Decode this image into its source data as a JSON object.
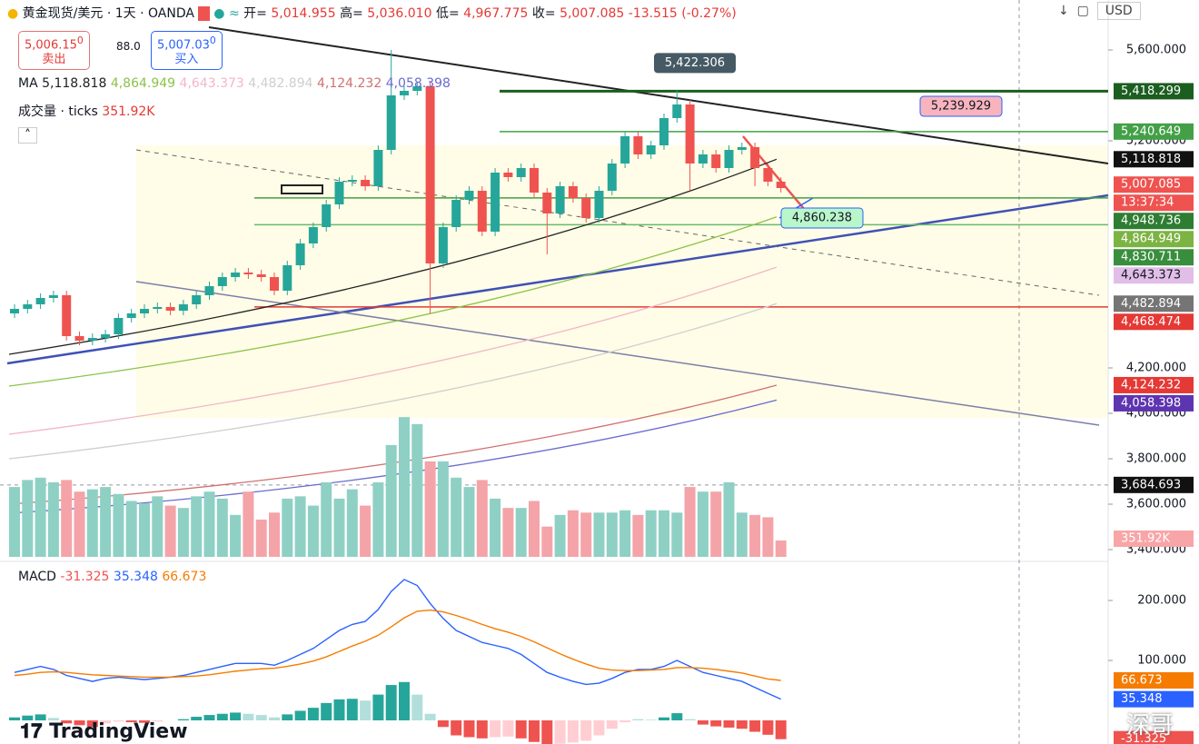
{
  "header": {
    "symbol": "黄金现货/美元 · 1天 · OANDA",
    "ohlc": [
      {
        "label": "开=",
        "value": "5,014.955"
      },
      {
        "label": "高=",
        "value": "5,036.010"
      },
      {
        "label": "低=",
        "value": "4,967.775"
      },
      {
        "label": "收=",
        "value": "5,007.085"
      }
    ],
    "change": "-13.515 (-0.27%)",
    "currency": "USD"
  },
  "trade": {
    "sell_price": "5,006.15",
    "sell_sup": "0",
    "sell_label": "卖出",
    "spread": "88.0",
    "buy_price": "5,007.03",
    "buy_sup": "0",
    "buy_label": "买入"
  },
  "ma_legend": {
    "label": "MA",
    "values": [
      "5,118.818",
      "4,864.949",
      "4,643.373",
      "4,482.894",
      "4,124.232",
      "4,058.398"
    ]
  },
  "volume_legend": {
    "label": "成交量 · ticks",
    "value": "351.92K"
  },
  "macd_legend": {
    "label": "MACD",
    "values": [
      "-31.325",
      "35.348",
      "66.673"
    ]
  },
  "price_chart": {
    "yticks": [
      {
        "value": 5600,
        "label": "5,600.000"
      },
      {
        "value": 5200,
        "label": "5,200.000"
      },
      {
        "value": 4200,
        "label": "4,200.000"
      },
      {
        "value": 4000,
        "label": "4,000.000"
      },
      {
        "value": 3800,
        "label": "3,800.000"
      },
      {
        "value": 3600,
        "label": "3,600.000"
      },
      {
        "value": 3400,
        "label": "3,400.000"
      }
    ],
    "open": [
      4440,
      4460,
      4480,
      4508,
      4520,
      4340,
      4320,
      4332,
      4348,
      4420,
      4440,
      4460,
      4468,
      4452,
      4480,
      4520,
      4560,
      4600,
      4620,
      4612,
      4600,
      4540,
      4652,
      4748,
      4820,
      4920,
      5020,
      5028,
      5000,
      5160,
      5400,
      5420,
      5440,
      4660,
      4820,
      4940,
      4980,
      4800,
      5060,
      5040,
      5080,
      4972,
      4880,
      5000,
      4948,
      4860,
      4980,
      5100,
      5220,
      5140,
      5180,
      5300,
      5360,
      5100,
      5140,
      5080,
      5160,
      5172,
      5080,
      5020
    ],
    "high": [
      4480,
      4500,
      4528,
      4540,
      4540,
      4360,
      4352,
      4368,
      4440,
      4460,
      4480,
      4488,
      4488,
      4500,
      4540,
      4580,
      4620,
      4640,
      4640,
      4632,
      4620,
      4672,
      4768,
      4840,
      4940,
      5040,
      5048,
      5048,
      5180,
      5600,
      5440,
      5460,
      5460,
      4840,
      4960,
      5000,
      5000,
      5080,
      5080,
      5100,
      5100,
      4992,
      5020,
      5020,
      4968,
      5000,
      5120,
      5240,
      5240,
      5200,
      5320,
      5422,
      5380,
      5160,
      5160,
      5180,
      5192,
      5192,
      5100,
      5040
    ],
    "low": [
      4420,
      4440,
      4460,
      4488,
      4320,
      4300,
      4300,
      4312,
      4328,
      4400,
      4420,
      4440,
      4432,
      4432,
      4460,
      4500,
      4540,
      4580,
      4592,
      4580,
      4520,
      4520,
      4632,
      4728,
      4800,
      4900,
      5000,
      4980,
      4980,
      5140,
      5380,
      5400,
      4440,
      4640,
      4800,
      4920,
      4780,
      4780,
      5020,
      5020,
      4952,
      4700,
      4860,
      4928,
      4840,
      4840,
      4960,
      5080,
      5120,
      5120,
      5160,
      5280,
      4980,
      5080,
      5060,
      5060,
      5140,
      5000,
      5000,
      4972
    ],
    "close": [
      4460,
      4480,
      4508,
      4520,
      4340,
      4320,
      4332,
      4348,
      4420,
      4440,
      4460,
      4468,
      4452,
      4480,
      4520,
      4560,
      4600,
      4620,
      4612,
      4600,
      4540,
      4652,
      4748,
      4820,
      4920,
      5020,
      5028,
      5000,
      5160,
      5400,
      5420,
      5440,
      4660,
      4820,
      4940,
      4980,
      4800,
      5060,
      5040,
      5080,
      4972,
      4880,
      5000,
      4948,
      4860,
      4980,
      5100,
      5220,
      5140,
      5180,
      5300,
      5360,
      5100,
      5140,
      5080,
      5160,
      5172,
      5080,
      5020,
      4992
    ],
    "volume": [
      1500,
      1650,
      1700,
      1600,
      1650,
      1400,
      1450,
      1500,
      1350,
      1200,
      1150,
      1300,
      1100,
      1050,
      1300,
      1400,
      1250,
      900,
      1400,
      800,
      950,
      1250,
      1300,
      1100,
      1600,
      1250,
      1450,
      1100,
      1600,
      2400,
      3000,
      2850,
      2050,
      2050,
      1700,
      1500,
      1650,
      1250,
      1050,
      1050,
      1200,
      650,
      900,
      1000,
      950,
      950,
      950,
      1000,
      900,
      1000,
      1000,
      950,
      1500,
      1400,
      1400,
      1600,
      950,
      900,
      850,
      351.92
    ],
    "ma": [
      {
        "value": 5118.818,
        "color": "#222222"
      },
      {
        "value": 4864.949,
        "color": "#8bc34a"
      },
      {
        "value": 4643.373,
        "color": "#f3b6c8"
      },
      {
        "value": 4482.894,
        "color": "#cfcfcf"
      },
      {
        "value": 4124.232,
        "color": "#d07070"
      },
      {
        "value": 4058.398,
        "color": "#6a6ad0"
      }
    ],
    "levels": [
      {
        "value": 5418.299,
        "color": "#1b5e20"
      },
      {
        "value": 5240.649,
        "color": "#43a047"
      },
      {
        "value": 4948.736,
        "color": "#43a047"
      },
      {
        "value": 4830.711,
        "color": "#66bb6a"
      },
      {
        "value": 4468.474,
        "color": "#e53935"
      }
    ],
    "crosshair": 3684.693,
    "callouts": [
      {
        "value": 5422.306,
        "label": "5,422.306",
        "color": "#455a64"
      },
      {
        "value": 5239.929,
        "label": "5,239.929",
        "color": "#f8b4bd"
      },
      {
        "value": 4860.238,
        "label": "4,860.238",
        "color": "#b9f6ca"
      }
    ],
    "badges": [
      {
        "value": 5418.299,
        "label": "5,418.299",
        "color": "#1b5e20"
      },
      {
        "value": 5240.649,
        "label": "5,240.649",
        "color": "#43a047"
      },
      {
        "value": 5118.818,
        "label": "5,118.818",
        "color": "#111111"
      },
      {
        "value": 5007.085,
        "label": "5,007.085",
        "color": "#ef5350"
      },
      {
        "value": 5007.085,
        "label": "13:37:34",
        "color": "#ef5350"
      },
      {
        "value": 4948.736,
        "label": "4,948.736",
        "color": "#2e7d32"
      },
      {
        "value": 4864.949,
        "label": "4,864.949",
        "color": "#7cb342"
      },
      {
        "value": 4830.711,
        "label": "4,830.711",
        "color": "#388e3c"
      },
      {
        "value": 4643.373,
        "label": "4,643.373",
        "color": "#e1bee7"
      },
      {
        "value": 4482.894,
        "label": "4,482.894",
        "color": "#757575"
      },
      {
        "value": 4468.474,
        "label": "4,468.474",
        "color": "#e53935"
      },
      {
        "value": 4124.232,
        "label": "4,124.232",
        "color": "#e53935"
      },
      {
        "value": 4058.398,
        "label": "4,058.398",
        "color": "#5e35b1"
      },
      {
        "value": 3684.693,
        "label": "3,684.693",
        "color": "#111111"
      }
    ],
    "volume_badge": "351.92K"
  },
  "macd_chart": {
    "yticks": [
      {
        "value": 200,
        "label": "200.000"
      },
      {
        "value": 100,
        "label": "100.000"
      }
    ],
    "macd": [
      80,
      85,
      90,
      85,
      75,
      70,
      65,
      70,
      72,
      70,
      68,
      70,
      72,
      75,
      80,
      85,
      90,
      95,
      95,
      95,
      92,
      100,
      110,
      120,
      135,
      150,
      160,
      165,
      185,
      215,
      235,
      225,
      195,
      170,
      150,
      140,
      130,
      125,
      120,
      110,
      95,
      80,
      72,
      65,
      60,
      62,
      70,
      80,
      85,
      85,
      90,
      100,
      90,
      80,
      75,
      70,
      65,
      55,
      45,
      35.348
    ],
    "signal": [
      75,
      77,
      80,
      81,
      80,
      78,
      76,
      75,
      74,
      73,
      72,
      72,
      72,
      73,
      74,
      76,
      79,
      82,
      84,
      86,
      87,
      90,
      94,
      99,
      106,
      115,
      124,
      132,
      142,
      156,
      171,
      182,
      184,
      181,
      175,
      168,
      160,
      153,
      147,
      140,
      131,
      121,
      111,
      102,
      94,
      87,
      84,
      83,
      83,
      84,
      85,
      88,
      88,
      87,
      85,
      82,
      79,
      74,
      69,
      66.673
    ],
    "histogram": [
      5,
      8,
      10,
      4,
      -5,
      -8,
      -11,
      -5,
      -2,
      -3,
      -4,
      -2,
      0,
      2,
      6,
      9,
      11,
      13,
      11,
      9,
      5,
      10,
      16,
      21,
      29,
      35,
      36,
      33,
      43,
      59,
      64,
      43,
      11,
      -11,
      -25,
      -28,
      -30,
      -28,
      -27,
      -30,
      -36,
      -41,
      -39,
      -37,
      -34,
      -25,
      -14,
      -3,
      2,
      1,
      5,
      12,
      2,
      -7,
      -10,
      -12,
      -14,
      -19,
      -24,
      -31.325
    ],
    "badges": [
      {
        "value": 66.673,
        "label": "66.673",
        "color": "#f57c00"
      },
      {
        "value": 35.348,
        "label": "35.348",
        "color": "#2962ff"
      },
      {
        "value": -31.325,
        "label": "-31.325",
        "color": "#ef5350"
      }
    ]
  },
  "footer": {
    "brand": "TradingView",
    "watermark": "深哥"
  }
}
